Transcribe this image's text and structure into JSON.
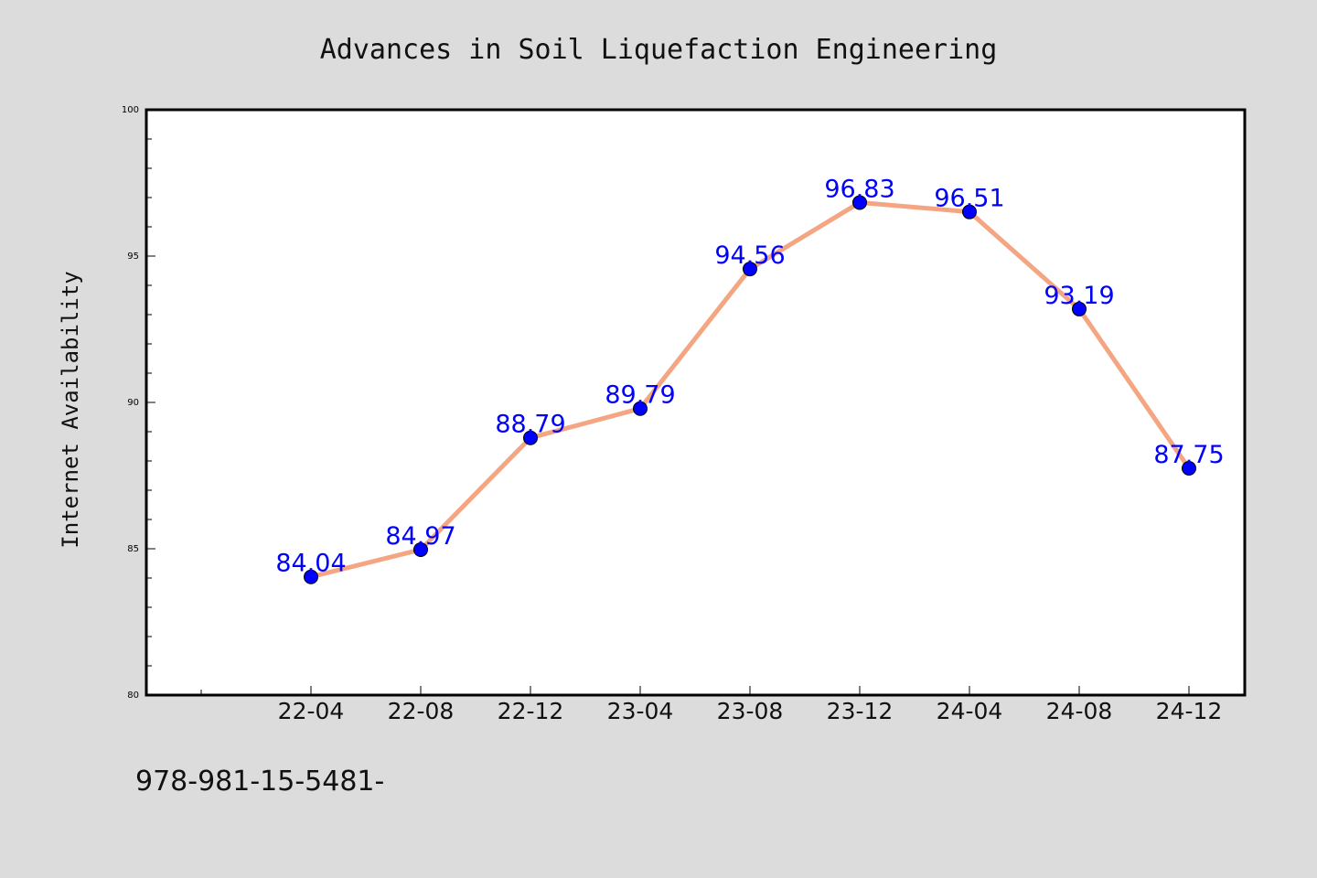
{
  "chart_data": {
    "type": "line",
    "title": "Advances in Soil Liquefaction Engineering",
    "xlabel": "",
    "ylabel": "Internet Availability",
    "categories": [
      "22-04",
      "22-08",
      "22-12",
      "23-04",
      "23-08",
      "23-12",
      "24-04",
      "24-08",
      "24-12"
    ],
    "series": [
      {
        "values": [
          84.04,
          84.97,
          88.79,
          89.79,
          94.56,
          96.83,
          96.51,
          93.19,
          87.75
        ],
        "labels": [
          "84.04",
          "84.97",
          "88.79",
          "89.79",
          "94.56",
          "96.83",
          "96.51",
          "93.19",
          "87.75"
        ]
      }
    ],
    "ylim": [
      80,
      100
    ],
    "yticks": [
      "80",
      "85",
      "90",
      "95",
      "100"
    ],
    "grid": false,
    "colors": {
      "line": "#f4a582",
      "marker": "#0000ff",
      "point_label": "#0000ff",
      "figure_background": "#dcdcdc",
      "plot_background": "#ffffff"
    }
  },
  "footer": {
    "isbn": "978-981-15-5481-"
  }
}
